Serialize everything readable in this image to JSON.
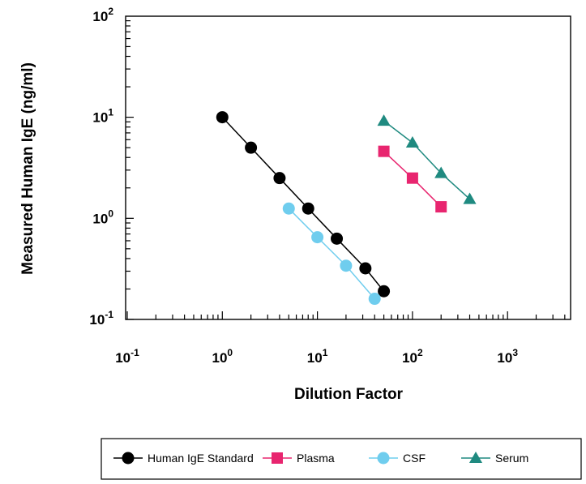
{
  "chart_data": {
    "type": "scatter",
    "xlabel": "Dilution Factor",
    "ylabel": "Measured Human IgE (ng/ml)",
    "xscale": "log",
    "yscale": "log",
    "xlim": [
      0.1,
      5000
    ],
    "ylim": [
      0.1,
      100
    ],
    "x_ticks": [
      {
        "base": "10",
        "exp": "-1",
        "value": 0.1
      },
      {
        "base": "10",
        "exp": "0",
        "value": 1
      },
      {
        "base": "10",
        "exp": "1",
        "value": 10
      },
      {
        "base": "10",
        "exp": "2",
        "value": 100
      },
      {
        "base": "10",
        "exp": "3",
        "value": 1000
      }
    ],
    "y_ticks": [
      {
        "base": "10",
        "exp": "-1",
        "value": 0.1
      },
      {
        "base": "10",
        "exp": "0",
        "value": 1
      },
      {
        "base": "10",
        "exp": "1",
        "value": 10
      },
      {
        "base": "10",
        "exp": "2",
        "value": 100
      }
    ],
    "grid": false,
    "legend_position": "bottom",
    "series": [
      {
        "name": "Human IgE Standard",
        "color": "#000000",
        "marker": "circle",
        "x": [
          1,
          2,
          4,
          8,
          16,
          32,
          50
        ],
        "y": [
          10,
          5,
          2.5,
          1.25,
          0.63,
          0.32,
          0.19
        ]
      },
      {
        "name": "Plasma",
        "color": "#e8256f",
        "marker": "square",
        "x": [
          50,
          100,
          200
        ],
        "y": [
          4.6,
          2.5,
          1.3
        ]
      },
      {
        "name": "CSF",
        "color": "#6fcdee",
        "marker": "circle",
        "x": [
          5,
          10,
          20,
          40
        ],
        "y": [
          1.25,
          0.65,
          0.34,
          0.16
        ]
      },
      {
        "name": "Serum",
        "color": "#1f8a80",
        "marker": "triangle",
        "x": [
          50,
          100,
          200,
          400
        ],
        "y": [
          9.2,
          5.6,
          2.8,
          1.55
        ]
      }
    ]
  }
}
